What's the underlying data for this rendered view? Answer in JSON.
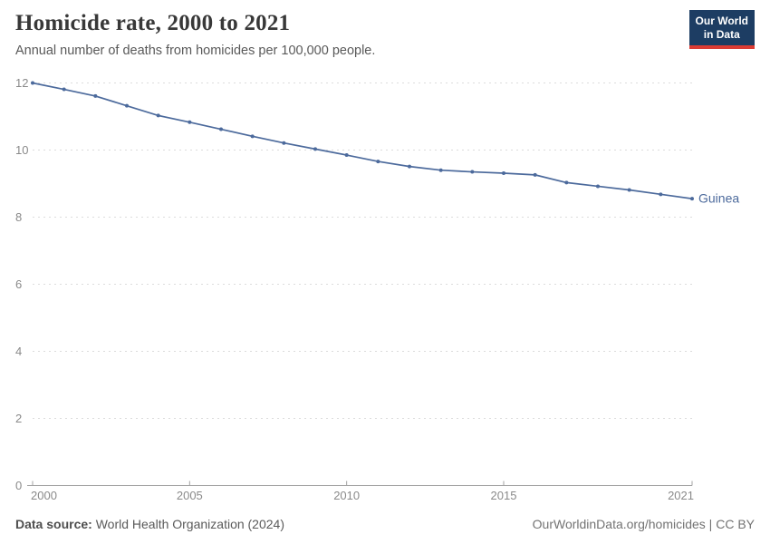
{
  "header": {
    "title": "Homicide rate, 2000 to 2021",
    "subtitle": "Annual number of deaths from homicides per 100,000 people."
  },
  "logo": {
    "line1": "Our World",
    "line2": "in Data",
    "bg_color": "#1d3d63",
    "bar_color": "#dc3c34"
  },
  "chart_data": {
    "type": "line",
    "title": "Homicide rate, 2000 to 2021",
    "ylabel": "Annual number of deaths from homicides per 100,000 people",
    "x": [
      2000,
      2001,
      2002,
      2003,
      2004,
      2005,
      2006,
      2007,
      2008,
      2009,
      2010,
      2011,
      2012,
      2013,
      2014,
      2015,
      2016,
      2017,
      2018,
      2019,
      2020,
      2021
    ],
    "series": [
      {
        "name": "Guinea",
        "color": "#4c6a9c",
        "values": [
          12.0,
          11.81,
          11.61,
          11.32,
          11.03,
          10.83,
          10.62,
          10.41,
          10.21,
          10.03,
          9.85,
          9.66,
          9.51,
          9.4,
          9.35,
          9.31,
          9.26,
          9.03,
          8.92,
          8.81,
          8.68,
          8.55
        ]
      }
    ],
    "xlim": [
      2000,
      2021
    ],
    "ylim": [
      0,
      12
    ],
    "x_ticks": [
      2000,
      2005,
      2010,
      2015,
      2021
    ],
    "y_ticks": [
      0,
      2,
      4,
      6,
      8,
      10,
      12
    ],
    "grid": "horizontal-dashed",
    "legend": "end-of-line-label",
    "axis_color": "#a3a3a3",
    "gridline_color": "#dcdcdc",
    "tick_label_color": "#8a8a8a"
  },
  "footer": {
    "source_label": "Data source:",
    "source_text": " World Health Organization (2024)",
    "rights": "OurWorldinData.org/homicides | CC BY"
  }
}
